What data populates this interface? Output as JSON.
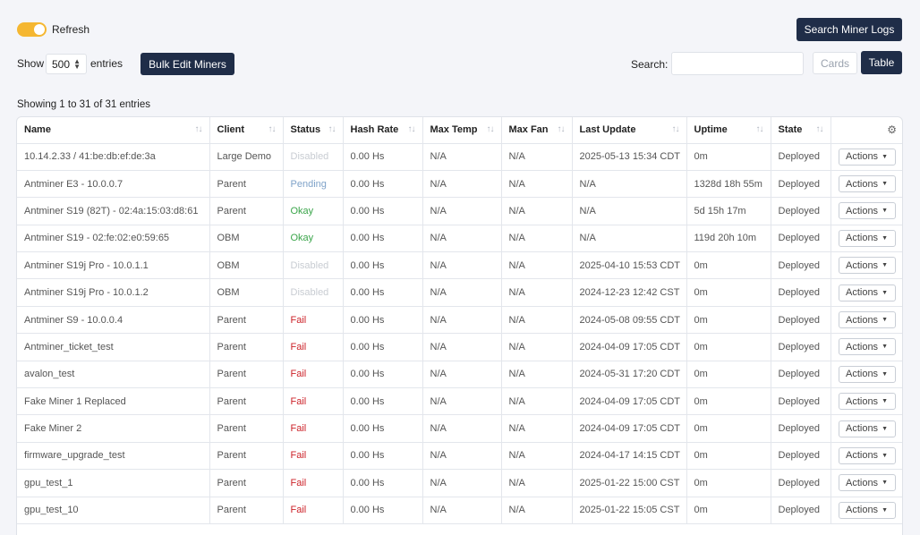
{
  "header": {
    "refresh_label": "Refresh",
    "search_logs_label": "Search Miner Logs",
    "show_label": "Show",
    "entries_value": "500",
    "entries_label": "entries",
    "bulk_edit_label": "Bulk Edit Miners",
    "search_label": "Search:",
    "search_value": "",
    "cards_label": "Cards",
    "table_label": "Table"
  },
  "table": {
    "info": "Showing 1 to 31 of 31 entries",
    "columns": [
      "Name",
      "Client",
      "Status",
      "Hash Rate",
      "Max Temp",
      "Max Fan",
      "Last Update",
      "Uptime",
      "State"
    ],
    "actions_label": "Actions",
    "rows": [
      {
        "name": "10.14.2.33 / 41:be:db:ef:de:3a",
        "client": "Large Demo",
        "status": "Disabled",
        "hash": "0.00 Hs",
        "temp": "N/A",
        "fan": "N/A",
        "update": "2025-05-13 15:34 CDT",
        "uptime": "0m",
        "state": "Deployed"
      },
      {
        "name": "Antminer E3 - 10.0.0.7",
        "client": "Parent",
        "status": "Pending",
        "hash": "0.00 Hs",
        "temp": "N/A",
        "fan": "N/A",
        "update": "N/A",
        "uptime": "1328d 18h 55m",
        "state": "Deployed"
      },
      {
        "name": "Antminer S19 (82T) - 02:4a:15:03:d8:61",
        "client": "Parent",
        "status": "Okay",
        "hash": "0.00 Hs",
        "temp": "N/A",
        "fan": "N/A",
        "update": "N/A",
        "uptime": "5d 15h 17m",
        "state": "Deployed"
      },
      {
        "name": "Antminer S19 - 02:fe:02:e0:59:65",
        "client": "OBM",
        "status": "Okay",
        "hash": "0.00 Hs",
        "temp": "N/A",
        "fan": "N/A",
        "update": "N/A",
        "uptime": "119d 20h 10m",
        "state": "Deployed"
      },
      {
        "name": "Antminer S19j Pro - 10.0.1.1",
        "client": "OBM",
        "status": "Disabled",
        "hash": "0.00 Hs",
        "temp": "N/A",
        "fan": "N/A",
        "update": "2025-04-10 15:53 CDT",
        "uptime": "0m",
        "state": "Deployed"
      },
      {
        "name": "Antminer S19j Pro - 10.0.1.2",
        "client": "OBM",
        "status": "Disabled",
        "hash": "0.00 Hs",
        "temp": "N/A",
        "fan": "N/A",
        "update": "2024-12-23 12:42 CST",
        "uptime": "0m",
        "state": "Deployed"
      },
      {
        "name": "Antminer S9 - 10.0.0.4",
        "client": "Parent",
        "status": "Fail",
        "hash": "0.00 Hs",
        "temp": "N/A",
        "fan": "N/A",
        "update": "2024-05-08 09:55 CDT",
        "uptime": "0m",
        "state": "Deployed"
      },
      {
        "name": "Antminer_ticket_test",
        "client": "Parent",
        "status": "Fail",
        "hash": "0.00 Hs",
        "temp": "N/A",
        "fan": "N/A",
        "update": "2024-04-09 17:05 CDT",
        "uptime": "0m",
        "state": "Deployed"
      },
      {
        "name": "avalon_test",
        "client": "Parent",
        "status": "Fail",
        "hash": "0.00 Hs",
        "temp": "N/A",
        "fan": "N/A",
        "update": "2024-05-31 17:20 CDT",
        "uptime": "0m",
        "state": "Deployed"
      },
      {
        "name": "Fake Miner 1 Replaced",
        "client": "Parent",
        "status": "Fail",
        "hash": "0.00 Hs",
        "temp": "N/A",
        "fan": "N/A",
        "update": "2024-04-09 17:05 CDT",
        "uptime": "0m",
        "state": "Deployed"
      },
      {
        "name": "Fake Miner 2",
        "client": "Parent",
        "status": "Fail",
        "hash": "0.00 Hs",
        "temp": "N/A",
        "fan": "N/A",
        "update": "2024-04-09 17:05 CDT",
        "uptime": "0m",
        "state": "Deployed"
      },
      {
        "name": "firmware_upgrade_test",
        "client": "Parent",
        "status": "Fail",
        "hash": "0.00 Hs",
        "temp": "N/A",
        "fan": "N/A",
        "update": "2024-04-17 14:15 CDT",
        "uptime": "0m",
        "state": "Deployed"
      },
      {
        "name": "gpu_test_1",
        "client": "Parent",
        "status": "Fail",
        "hash": "0.00 Hs",
        "temp": "N/A",
        "fan": "N/A",
        "update": "2025-01-22 15:00 CST",
        "uptime": "0m",
        "state": "Deployed"
      },
      {
        "name": "gpu_test_10",
        "client": "Parent",
        "status": "Fail",
        "hash": "0.00 Hs",
        "temp": "N/A",
        "fan": "N/A",
        "update": "2025-01-22 15:05 CST",
        "uptime": "0m",
        "state": "Deployed"
      }
    ]
  },
  "icons": {
    "sort": "sort-icon",
    "gear": "gear-icon",
    "caret": "caret-down-icon"
  },
  "colors": {
    "accent": "#1f2d48",
    "toggle_on": "#f5b731",
    "status_okay": "#3aa54a",
    "status_fail": "#cc2228",
    "status_pending": "#7fa3c9",
    "status_disabled": "#c8ccd2"
  }
}
